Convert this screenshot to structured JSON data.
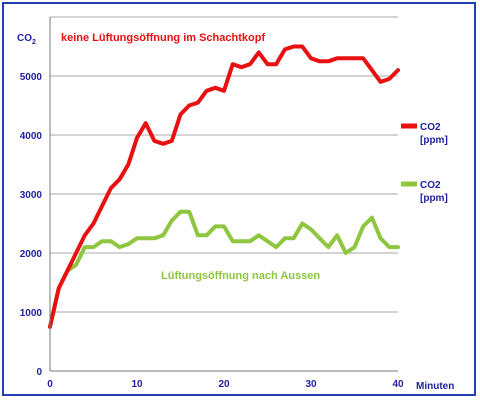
{
  "chart_data": {
    "type": "line",
    "ylabel": "CO",
    "ylabel_sub": "2",
    "xlabel": "Minuten",
    "xlim": [
      0,
      40
    ],
    "ylim": [
      0,
      6000
    ],
    "xticks": [
      0,
      10,
      20,
      30,
      40
    ],
    "yticks": [
      0,
      1000,
      2000,
      3000,
      4000,
      5000
    ],
    "grid": "horizontal",
    "legend_position": "right",
    "annotations": [
      {
        "id": "red",
        "text": "keine Lüftungsöffnung im Schachtkopf",
        "color": "#e81010"
      },
      {
        "id": "green",
        "text": "Lüftungsöffnung nach Aussen",
        "color": "#8ec63f"
      }
    ],
    "series": [
      {
        "name": "CO2 [ppm]",
        "legend_lines": [
          "CO2",
          "[ppm]"
        ],
        "color": "#e81010",
        "x": [
          0,
          1,
          2,
          3,
          4,
          5,
          6,
          7,
          8,
          9,
          10,
          11,
          12,
          13,
          14,
          15,
          16,
          17,
          18,
          19,
          20,
          21,
          22,
          23,
          24,
          25,
          26,
          27,
          28,
          29,
          30,
          31,
          32,
          33,
          34,
          35,
          36,
          37,
          38,
          39,
          40
        ],
        "y": [
          750,
          1400,
          1700,
          2000,
          2300,
          2500,
          2800,
          3100,
          3250,
          3500,
          3950,
          4200,
          3900,
          3850,
          3900,
          4350,
          4500,
          4550,
          4750,
          4800,
          4750,
          5200,
          5150,
          5200,
          5400,
          5200,
          5200,
          5450,
          5500,
          5500,
          5300,
          5250,
          5250,
          5300,
          5300,
          5300,
          5300,
          5100,
          4900,
          4950,
          5100
        ]
      },
      {
        "name": "CO2 [ppm]",
        "legend_lines": [
          "CO2",
          "[ppm]"
        ],
        "color": "#8ec63f",
        "x": [
          0,
          1,
          2,
          3,
          4,
          5,
          6,
          7,
          8,
          9,
          10,
          11,
          12,
          13,
          14,
          15,
          16,
          17,
          18,
          19,
          20,
          21,
          22,
          23,
          24,
          25,
          26,
          27,
          28,
          29,
          30,
          31,
          32,
          33,
          34,
          35,
          36,
          37,
          38,
          39,
          40
        ],
        "y": [
          750,
          1400,
          1700,
          1800,
          2100,
          2100,
          2200,
          2200,
          2100,
          2150,
          2250,
          2250,
          2250,
          2300,
          2550,
          2700,
          2700,
          2300,
          2300,
          2450,
          2450,
          2200,
          2200,
          2200,
          2300,
          2200,
          2100,
          2250,
          2250,
          2500,
          2400,
          2250,
          2100,
          2300,
          2000,
          2100,
          2450,
          2600,
          2250,
          2100,
          2100
        ]
      }
    ]
  }
}
